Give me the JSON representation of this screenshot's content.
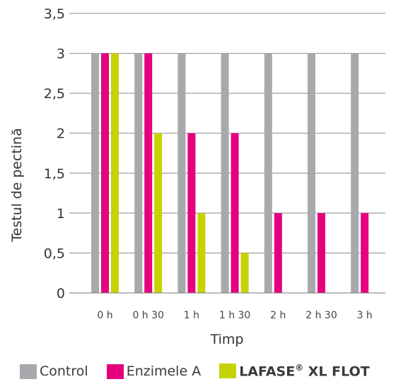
{
  "chart_data": {
    "type": "bar",
    "categories": [
      "0 h",
      "0 h 30",
      "1 h",
      "1 h 30",
      "2 h",
      "2 h 30",
      "3 h"
    ],
    "series": [
      {
        "name": "Control",
        "color": "#a8a9ad",
        "values": [
          3,
          3,
          3,
          3,
          3,
          3,
          3
        ]
      },
      {
        "name": "Enzimele A",
        "color": "#e5007d",
        "values": [
          3,
          3,
          2,
          2,
          1,
          1,
          1
        ]
      },
      {
        "name": "LAFASE XL FLOT",
        "name_main": "LAFASE",
        "name_sup": "®",
        "name_tail": " XL FLOT",
        "color": "#c6d300",
        "values": [
          3,
          2,
          1,
          0.5,
          null,
          null,
          null
        ]
      }
    ],
    "xlabel": "Timp",
    "ylabel": "Testul de pectină",
    "ylim": [
      0,
      3.5
    ],
    "yticks": [
      "0",
      "0,5",
      "1",
      "1,5",
      "2",
      "2,5",
      "3",
      "3,5"
    ],
    "grid": true,
    "legend_position": "bottom"
  }
}
